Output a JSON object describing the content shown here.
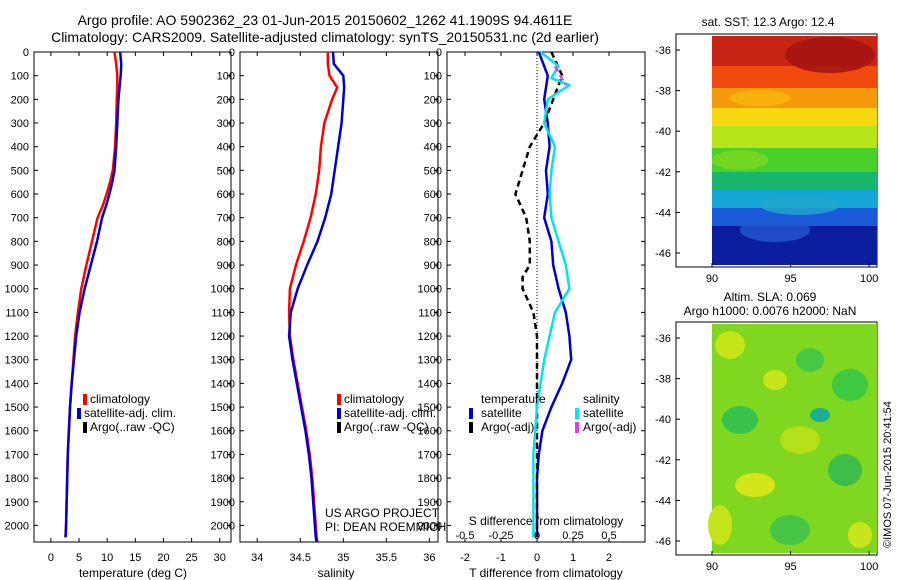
{
  "header": {
    "title_line1": "Argo profile: AO 5902362_23 01-Jun-2015 20150602_1262 41.1909S 94.4611E",
    "title_line2": "Climatology: CARS2009. Satellite-adjusted climatology: synTS_20150531.nc (2d earlier)"
  },
  "panels": {
    "temperature": {
      "xlabel": "temperature (deg C)",
      "legend": [
        "climatology",
        "satellite-adj. clim.",
        "Argo(..raw -QC)"
      ]
    },
    "salinity": {
      "xlabel": "salinity",
      "legend": [
        "climatology",
        "satellite-adj. clim.",
        "Argo(..raw -QC)"
      ],
      "credit_line1": "US ARGO PROJECT",
      "credit_line2": "PI: DEAN ROEMMICH"
    },
    "difference": {
      "xlabel": "T difference from climatology",
      "top_xlabel": "S difference from climatology",
      "legend_temp_title": "temperature",
      "legend_sal_title": "salinity",
      "legend_temp": [
        "satellite",
        "Argo(-adj)"
      ],
      "legend_sal": [
        "satellite",
        "Argo(-adj)"
      ]
    },
    "sst_map": {
      "title": "sat. SST: 12.3 Argo: 12.4"
    },
    "sla_map": {
      "title_line1": "Altim. SLA: 0.069",
      "title_line2": "Argo h1000: 0.0076 h2000: NaN"
    }
  },
  "stamp": "©IMOS 07-Jun-2015 20:41:54",
  "colors": {
    "climatology": "#ff0000",
    "satellite": "#0000cc",
    "argo": "#000000",
    "satellite_sal": "#00e5e5",
    "argo_sal": "#e040e0"
  },
  "chart_data": [
    {
      "type": "line",
      "name": "temperature profile",
      "xlabel": "temperature (deg C)",
      "ylabel": "",
      "xlim": [
        -3,
        32
      ],
      "ylim": [
        2070,
        0
      ],
      "xticks": [
        0,
        5,
        10,
        15,
        20,
        25,
        30
      ],
      "yticks": [
        0,
        100,
        200,
        300,
        400,
        500,
        600,
        700,
        800,
        900,
        1000,
        1100,
        1200,
        1300,
        1400,
        1500,
        1600,
        1700,
        1800,
        1900,
        2000
      ],
      "series": [
        {
          "name": "climatology",
          "color": "#ff0000",
          "x": [
            11.3,
            11.6,
            11.8,
            11.8,
            11.7,
            11.6,
            11.4,
            11.0,
            10.5,
            9.9,
            9.2,
            8.3,
            7.3,
            6.3,
            5.4,
            4.8,
            4.3,
            4.0,
            3.7,
            3.4,
            3.2,
            3.0,
            2.9,
            2.8,
            2.7,
            2.6
          ],
          "y": [
            0,
            50,
            100,
            150,
            200,
            300,
            400,
            500,
            550,
            600,
            650,
            700,
            800,
            900,
            1000,
            1100,
            1200,
            1300,
            1400,
            1500,
            1600,
            1700,
            1800,
            1900,
            2000,
            2050
          ]
        },
        {
          "name": "satellite-adj. clim.",
          "color": "#0000cc",
          "x": [
            12.3,
            12.5,
            12.4,
            12.2,
            12.0,
            11.8,
            11.6,
            11.3,
            10.9,
            10.4,
            9.8,
            9.1,
            8.2,
            7.1,
            6.0,
            5.1,
            4.5,
            4.1,
            3.7,
            3.4,
            3.2,
            3.0,
            2.9,
            2.8,
            2.7,
            2.6
          ],
          "y": [
            0,
            50,
            100,
            150,
            200,
            300,
            400,
            500,
            550,
            600,
            650,
            700,
            800,
            900,
            1000,
            1100,
            1200,
            1300,
            1400,
            1500,
            1600,
            1700,
            1800,
            1900,
            2000,
            2050
          ]
        }
      ]
    },
    {
      "type": "line",
      "name": "salinity profile",
      "xlabel": "salinity",
      "ylabel": "",
      "xlim": [
        33.8,
        36.1
      ],
      "ylim": [
        2070,
        0
      ],
      "xticks": [
        34,
        34.5,
        35,
        35.5,
        36
      ],
      "xticklabels": [
        "34",
        "34.5",
        "35",
        "35.5",
        "36"
      ],
      "series": [
        {
          "name": "climatology",
          "color": "#ff0000",
          "x": [
            34.82,
            34.82,
            34.84,
            34.93,
            34.87,
            34.78,
            34.74,
            34.72,
            34.68,
            34.62,
            34.54,
            34.45,
            34.38,
            34.37,
            34.38,
            34.42,
            34.47,
            34.52,
            34.57,
            34.61,
            34.64,
            34.66,
            34.68,
            34.69,
            34.7
          ],
          "y": [
            0,
            50,
            100,
            150,
            200,
            300,
            400,
            500,
            600,
            700,
            800,
            900,
            1000,
            1100,
            1200,
            1300,
            1400,
            1500,
            1600,
            1700,
            1800,
            1900,
            2000,
            2050,
            2070
          ]
        },
        {
          "name": "satellite-adj. clim.",
          "color": "#0000cc",
          "x": [
            34.88,
            34.89,
            35.0,
            35.01,
            35.0,
            34.98,
            34.94,
            34.9,
            34.86,
            34.79,
            34.7,
            34.58,
            34.47,
            34.39,
            34.37,
            34.41,
            34.46,
            34.51,
            34.56,
            34.6,
            34.63,
            34.65,
            34.67,
            34.68,
            34.69
          ],
          "y": [
            0,
            50,
            100,
            150,
            200,
            300,
            400,
            500,
            600,
            700,
            800,
            900,
            1000,
            1100,
            1200,
            1300,
            1400,
            1500,
            1600,
            1700,
            1800,
            1900,
            2000,
            2050,
            2070
          ]
        }
      ]
    },
    {
      "type": "line",
      "name": "difference from climatology",
      "xlabel": "T difference from climatology",
      "top_xlabel": "S difference from climatology",
      "xlim": [
        -2.5,
        3.0
      ],
      "ylim": [
        2070,
        0
      ],
      "xticks": [
        -2,
        -1,
        0,
        1,
        2
      ],
      "top_xticks_pos": [
        -2,
        -1,
        0,
        1,
        2
      ],
      "top_xticklabels": [
        "-0.5",
        "-0.25",
        "0",
        "0.25",
        "0.5"
      ],
      "series": [
        {
          "name": "temperature satellite",
          "color": "#0000cc",
          "x": [
            0.05,
            0.3,
            0.2,
            0.3,
            0.35,
            0.25,
            0.3,
            0.2,
            0.4,
            0.45,
            0.6,
            0.8,
            0.9,
            0.95,
            0.7,
            0.4,
            0.15,
            0.05,
            0.0,
            0.0,
            0.0
          ],
          "y": [
            0,
            100,
            200,
            300,
            400,
            500,
            600,
            700,
            800,
            900,
            1000,
            1100,
            1200,
            1300,
            1400,
            1500,
            1600,
            1700,
            1800,
            1900,
            2050
          ]
        },
        {
          "name": "temperature Argo(-adj)",
          "color": "#000000",
          "x": [
            0.4,
            0.7,
            0.2,
            -0.2,
            -0.4,
            -0.6,
            -0.3,
            -0.2,
            -0.2,
            -0.4,
            -0.4,
            -0.1,
            0.0,
            0.0,
            0.0,
            0.0,
            0.0
          ],
          "y": [
            0,
            100,
            300,
            400,
            500,
            600,
            700,
            800,
            900,
            950,
            1000,
            1100,
            1200,
            1400,
            1600,
            1800,
            2050
          ]
        },
        {
          "name": "salinity satellite",
          "color": "#00e5e5",
          "x": [
            0.1,
            0.6,
            0.4,
            0.9,
            0.3,
            0.2,
            0.5,
            0.4,
            0.35,
            0.4,
            0.6,
            0.8,
            0.9,
            0.5,
            0.2,
            0.0,
            -0.1,
            -0.1,
            -0.1
          ],
          "y": [
            0,
            60,
            110,
            140,
            200,
            300,
            400,
            500,
            600,
            700,
            800,
            900,
            1000,
            1100,
            1300,
            1500,
            1700,
            1900,
            2050
          ]
        },
        {
          "name": "salinity Argo(-adj)",
          "color": "#e040e0",
          "x": [
            0.5,
            0.8
          ],
          "y": [
            60,
            140
          ]
        }
      ]
    }
  ]
}
